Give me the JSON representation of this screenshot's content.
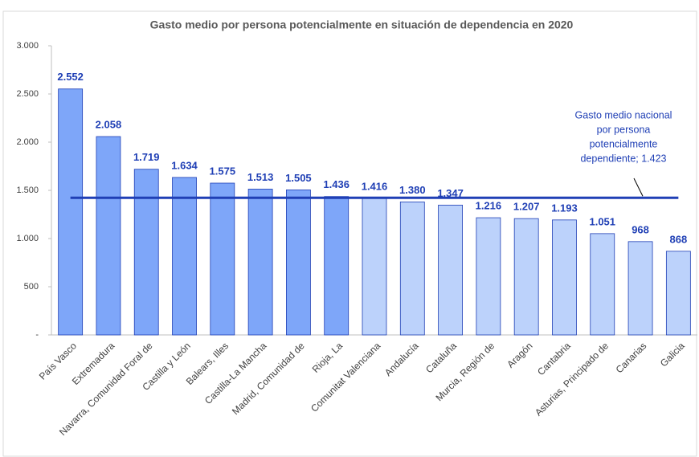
{
  "chart_data": {
    "type": "bar",
    "title": "Gasto medio por persona potencialmente en situación de dependencia en 2020",
    "categories": [
      "País Vasco",
      "Extremadura",
      "Navarra, Comunidad Foral de",
      "Castilla y León",
      "Balears, Illes",
      "Castilla-La Mancha",
      "Madrid, Comunidad de",
      "Rioja, La",
      "Comunitat Valenciana",
      "Andalucía",
      "Cataluña",
      "Murcia, Región de",
      "Aragón",
      "Cantabria",
      "Asturias, Principado de",
      "Canarias",
      "Galicia"
    ],
    "values": [
      2552,
      2058,
      1719,
      1634,
      1575,
      1513,
      1505,
      1436,
      1416,
      1380,
      1347,
      1216,
      1207,
      1193,
      1051,
      968,
      868
    ],
    "value_labels": [
      "2.552",
      "2.058",
      "1.719",
      "1.634",
      "1.575",
      "1.513",
      "1.505",
      "1.436",
      "1.416",
      "1.380",
      "1.347",
      "1.216",
      "1.207",
      "1.193",
      "1.051",
      "968",
      "868"
    ],
    "colors": [
      "#7ea6f9",
      "#7ea6f9",
      "#7ea6f9",
      "#7ea6f9",
      "#7ea6f9",
      "#7ea6f9",
      "#7ea6f9",
      "#7ea6f9",
      "#bcd2fb",
      "#bcd2fb",
      "#bcd2fb",
      "#bcd2fb",
      "#bcd2fb",
      "#bcd2fb",
      "#bcd2fb",
      "#bcd2fb",
      "#bcd2fb"
    ],
    "ylim": [
      0,
      3000
    ],
    "yticks": [
      {
        "value": 0,
        "label": "-"
      },
      500,
      {
        "value": 1000,
        "label": "1.000"
      },
      {
        "value": 1500,
        "label": "1.500"
      },
      {
        "value": 2000,
        "label": "2.000"
      },
      {
        "value": 2500,
        "label": "2.500"
      },
      {
        "value": 3000,
        "label": "3.000"
      }
    ],
    "reference_line": {
      "value": 1423,
      "color": "#1f3fb5",
      "label": [
        "Gasto medio nacional",
        "por persona",
        "potencialmente",
        "dependiente;  1.423"
      ]
    }
  }
}
